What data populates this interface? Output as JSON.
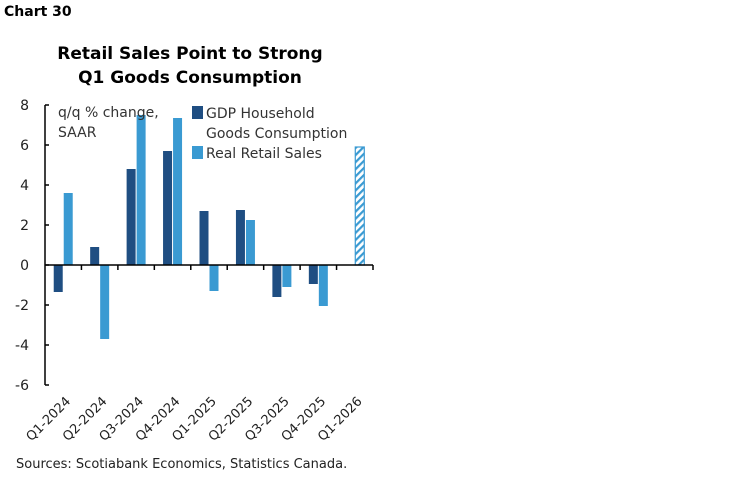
{
  "chart_label": "Chart 30",
  "source": "Sources: Scotiabank Economics, Statistics Canada.",
  "chart_data": {
    "type": "bar",
    "title": "Retail Sales Point to Strong Q1 Goods Consumption",
    "title_lines": [
      "Retail Sales Point to Strong",
      "Q1 Goods Consumption"
    ],
    "ylabel_lines": [
      "q/q % change,",
      "SAAR"
    ],
    "ylim": [
      -6,
      8
    ],
    "yticks": [
      8,
      6,
      4,
      2,
      0,
      -2,
      -4,
      -6
    ],
    "grid": false,
    "legend_placement": "top",
    "categories": [
      "Q1-2024",
      "Q2-2024",
      "Q3-2024",
      "Q4-2024",
      "Q1-2025",
      "Q2-2025",
      "Q3-2025",
      "Q4-2025",
      "Q1-2026"
    ],
    "series": [
      {
        "name": "GDP Household Goods Consumption",
        "legend_lines": [
          "GDP Household",
          "Goods Consumption"
        ],
        "color": "#1f4e82",
        "values": [
          -1.35,
          0.9,
          4.8,
          5.7,
          2.7,
          2.75,
          -1.6,
          -0.95,
          null
        ]
      },
      {
        "name": "Real Retail Sales",
        "legend_lines": [
          "Real Retail Sales"
        ],
        "color": "#3a9ad2",
        "values": [
          3.6,
          -3.7,
          7.5,
          7.35,
          -1.3,
          2.25,
          -1.1,
          -2.05,
          5.9
        ],
        "hatched": [
          false,
          false,
          false,
          false,
          false,
          false,
          false,
          false,
          true
        ]
      }
    ]
  }
}
